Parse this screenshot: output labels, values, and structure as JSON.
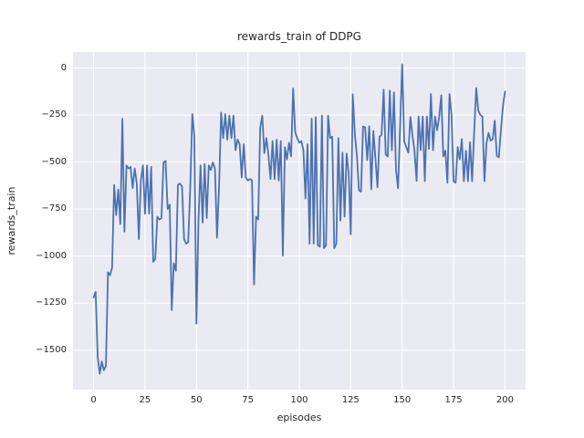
{
  "figure": {
    "title": "rewards_train of DDPG",
    "xlabel": "episodes",
    "ylabel": "rewards_train"
  },
  "chart_data": {
    "type": "line",
    "title": "rewards_train of DDPG",
    "xlabel": "episodes",
    "ylabel": "rewards_train",
    "legend_position": "none",
    "grid": true,
    "xlim": [
      -10,
      210
    ],
    "ylim": [
      -1710,
      85
    ],
    "xticks": {
      "values": [
        0,
        25,
        50,
        75,
        100,
        125,
        150,
        175,
        200
      ],
      "labels": [
        "0",
        "25",
        "50",
        "75",
        "100",
        "125",
        "150",
        "175",
        "200"
      ]
    },
    "yticks": {
      "values": [
        0,
        -250,
        -500,
        -750,
        -1000,
        -1250,
        -1500
      ],
      "labels": [
        "0",
        "−250",
        "−500",
        "−750",
        "−1000",
        "−1250",
        "−1500"
      ]
    },
    "x_start": 0,
    "x_step": 1,
    "series": [
      {
        "name": "rewards_train",
        "color": "#4c72b0",
        "values": [
          -1220,
          -1190,
          -1535,
          -1625,
          -1560,
          -1607,
          -1583,
          -1086,
          -1102,
          -1062,
          -622,
          -782,
          -646,
          -830,
          -270,
          -870,
          -518,
          -534,
          -526,
          -638,
          -534,
          -614,
          -910,
          -598,
          -518,
          -774,
          -518,
          -774,
          -526,
          -1030,
          -1014,
          -790,
          -806,
          -798,
          -502,
          -494,
          -750,
          -726,
          -1287,
          -1038,
          -1078,
          -622,
          -614,
          -630,
          -910,
          -934,
          -926,
          -630,
          -245,
          -365,
          -1359,
          -806,
          -518,
          -822,
          -510,
          -798,
          -518,
          -542,
          -502,
          -534,
          -902,
          -630,
          -237,
          -373,
          -245,
          -381,
          -253,
          -373,
          -253,
          -437,
          -381,
          -405,
          -582,
          -405,
          -582,
          -598,
          -590,
          -598,
          -1151,
          -790,
          -806,
          -317,
          -253,
          -453,
          -373,
          -461,
          -590,
          -389,
          -590,
          -381,
          -598,
          -389,
          -998,
          -421,
          -486,
          -397,
          -470,
          -109,
          -341,
          -373,
          -397,
          -389,
          -437,
          -694,
          -405,
          -934,
          -269,
          -934,
          -261,
          -942,
          -950,
          -253,
          -958,
          -942,
          -253,
          -373,
          -365,
          -958,
          -934,
          -373,
          -811,
          -450,
          -790,
          -455,
          -560,
          -884,
          -140,
          -350,
          -466,
          -650,
          -658,
          -311,
          -315,
          -490,
          -310,
          -645,
          -335,
          -480,
          -635,
          -365,
          -355,
          -115,
          -460,
          -470,
          -120,
          -437,
          -130,
          -540,
          -640,
          -310,
          20,
          -390,
          -420,
          -450,
          -260,
          -360,
          -440,
          -600,
          -258,
          -437,
          -258,
          -602,
          -258,
          -430,
          -138,
          -437,
          -258,
          -331,
          -258,
          -145,
          -470,
          -440,
          -610,
          -138,
          -250,
          -602,
          -610,
          -420,
          -486,
          -378,
          -602,
          -440,
          -602,
          -394,
          -602,
          -340,
          -106,
          -226,
          -250,
          -258,
          -602,
          -400,
          -345,
          -386,
          -378,
          -280,
          -467,
          -475,
          -330,
          -202,
          -125
        ]
      }
    ],
    "style": {
      "fig_bg": "#ffffff",
      "axes_bg": "#eaeaf2",
      "grid_color": "#ffffff",
      "text_color": "#262626",
      "line_width": 1.8
    }
  }
}
